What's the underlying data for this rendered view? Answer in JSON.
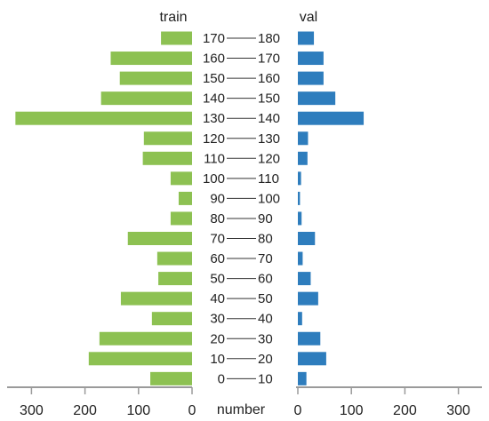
{
  "chart_data": {
    "type": "bar",
    "orientation": "horizontal-back-to-back",
    "categories": [
      {
        "low": "170",
        "high": "180"
      },
      {
        "low": "160",
        "high": "170"
      },
      {
        "low": "150",
        "high": "160"
      },
      {
        "low": "140",
        "high": "150"
      },
      {
        "low": "130",
        "high": "140"
      },
      {
        "low": "120",
        "high": "130"
      },
      {
        "low": "110",
        "high": "120"
      },
      {
        "low": "100",
        "high": "110"
      },
      {
        "low": "90",
        "high": "100"
      },
      {
        "low": "80",
        "high": "90"
      },
      {
        "low": "70",
        "high": "80"
      },
      {
        "low": "60",
        "high": "70"
      },
      {
        "low": "50",
        "high": "60"
      },
      {
        "low": "40",
        "high": "50"
      },
      {
        "low": "30",
        "high": "40"
      },
      {
        "low": "20",
        "high": "30"
      },
      {
        "low": "10",
        "high": "20"
      },
      {
        "low": "0",
        "high": "10"
      }
    ],
    "series": [
      {
        "name": "train",
        "color": "#8dc152",
        "side": "left",
        "values": [
          58,
          152,
          135,
          170,
          330,
          90,
          92,
          40,
          25,
          40,
          120,
          65,
          63,
          133,
          75,
          173,
          193,
          78
        ]
      },
      {
        "name": "val",
        "color": "#2e7dbd",
        "side": "right",
        "values": [
          30,
          48,
          48,
          70,
          123,
          19,
          18,
          6,
          4,
          7,
          32,
          9,
          24,
          38,
          8,
          42,
          53,
          16
        ]
      }
    ],
    "left_axis": {
      "ticks": [
        300,
        200,
        100,
        0
      ],
      "range": [
        0,
        340
      ]
    },
    "right_axis": {
      "ticks": [
        0,
        100,
        200,
        300
      ],
      "range": [
        0,
        340
      ]
    },
    "xlabel": "number",
    "grid": false
  }
}
